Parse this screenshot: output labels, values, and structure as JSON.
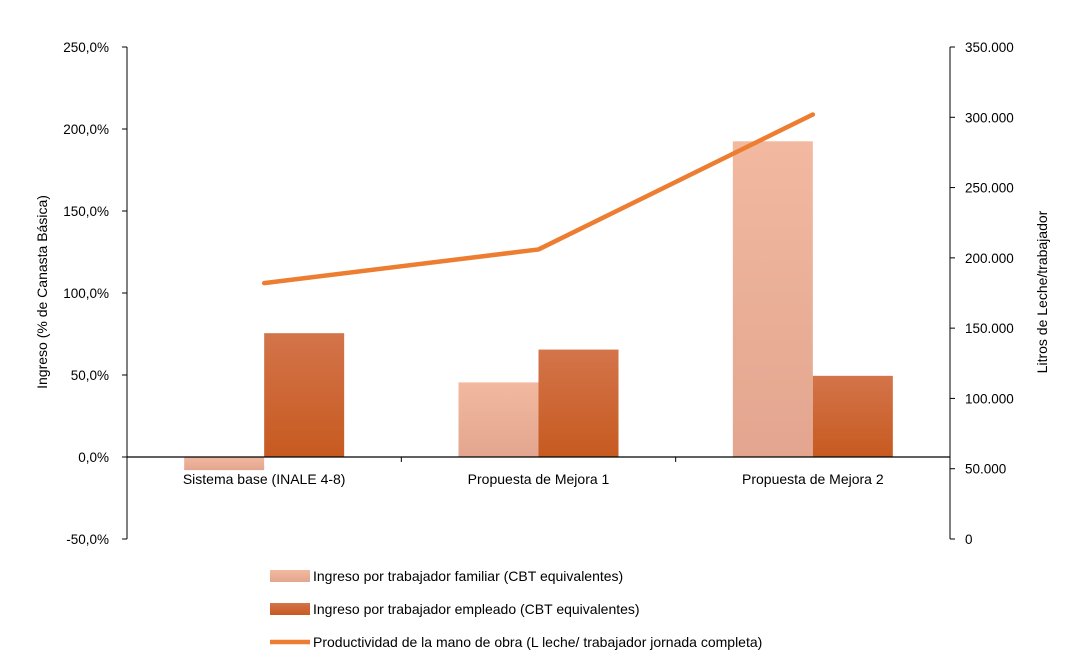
{
  "chart_data": {
    "type": "bar",
    "categories": [
      "Sistema base (INALE 4-8)",
      "Propuesta de Mejora 1",
      "Propuesta de Mejora 2"
    ],
    "series": [
      {
        "name": "Ingreso por trabajador familiar (CBT equivalentes)",
        "kind": "bar",
        "axis": "left",
        "values": [
          -8.0,
          45.5,
          192.5
        ],
        "color": "#efb59c"
      },
      {
        "name": "Ingreso por trabajador empleado (CBT equivalentes)",
        "kind": "bar",
        "axis": "left",
        "values": [
          75.5,
          65.5,
          49.5
        ],
        "color": "#d2622a"
      },
      {
        "name": "Productividad de la mano de obra (L leche/ trabajador jornada completa)",
        "kind": "line",
        "axis": "right",
        "values": [
          182000,
          206000,
          302000
        ],
        "color": "#ed7d31"
      }
    ],
    "ylabel": "Ingreso (% de Canasta Básica)",
    "y2label": "Litros de Leche/trabajador",
    "ylim": [
      -50,
      250
    ],
    "y2lim": [
      0,
      350000
    ],
    "yticks": [
      "-50,0%",
      "0,0%",
      "50,0%",
      "100,0%",
      "150,0%",
      "200,0%",
      "250,0%"
    ],
    "y2ticks": [
      "0",
      "50.000",
      "100.000",
      "150.000",
      "200.000",
      "250.000",
      "300.000",
      "350.000"
    ],
    "legend_position": "bottom",
    "grid": false
  }
}
